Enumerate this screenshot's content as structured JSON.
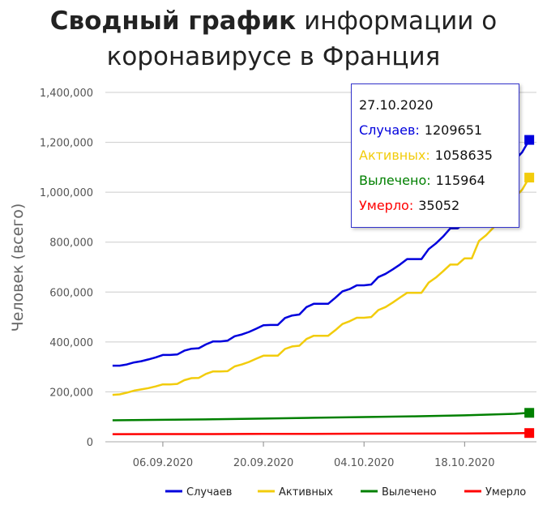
{
  "title": {
    "bold": "Сводный график",
    "rest": " информации о",
    "line2": "коронавирусе в Франция"
  },
  "tooltip": {
    "date": "27.10.2020",
    "rows": [
      {
        "label": "Случаев:",
        "value": "1209651",
        "color": "#0000dd"
      },
      {
        "label": "Активных:",
        "value": "1058635",
        "color": "#f2cc0c"
      },
      {
        "label": "Вылечено:",
        "value": "115964",
        "color": "#008000"
      },
      {
        "label": "Умерло:",
        "value": "35052",
        "color": "#ff0000"
      }
    ]
  },
  "chart_data": {
    "type": "line",
    "ylabel": "Человек (всего)",
    "ylim": [
      0,
      1400000
    ],
    "yticks": [
      {
        "value": 0,
        "label": "0"
      },
      {
        "value": 200000,
        "label": "200,000"
      },
      {
        "value": 400000,
        "label": "400,000"
      },
      {
        "value": 600000,
        "label": "600,000"
      },
      {
        "value": 800000,
        "label": "800,000"
      },
      {
        "value": 1000000,
        "label": "1,000,000"
      },
      {
        "value": 1200000,
        "label": "1,200,000"
      },
      {
        "value": 1400000,
        "label": "1,400,000"
      }
    ],
    "x_start": "2020-08-29",
    "x_end": "2020-10-28",
    "xticks": [
      {
        "date": "2020-09-06",
        "label": "06.09.2020"
      },
      {
        "date": "2020-09-20",
        "label": "20.09.2020"
      },
      {
        "date": "2020-10-04",
        "label": "04.10.2020"
      },
      {
        "date": "2020-10-18",
        "label": "18.10.2020"
      }
    ],
    "grid": true,
    "legend_position": "bottom-right",
    "series": [
      {
        "name": "Случаев",
        "color": "#0000dd",
        "points": [
          [
            "2020-08-30",
            305000
          ],
          [
            "2020-08-31",
            305000
          ],
          [
            "2020-09-01",
            310000
          ],
          [
            "2020-09-02",
            318000
          ],
          [
            "2020-09-03",
            323000
          ],
          [
            "2020-09-04",
            330000
          ],
          [
            "2020-09-05",
            338000
          ],
          [
            "2020-09-06",
            348000
          ],
          [
            "2020-09-07",
            348000
          ],
          [
            "2020-09-08",
            350000
          ],
          [
            "2020-09-09",
            365000
          ],
          [
            "2020-09-10",
            373000
          ],
          [
            "2020-09-11",
            375000
          ],
          [
            "2020-09-12",
            390000
          ],
          [
            "2020-09-13",
            402000
          ],
          [
            "2020-09-14",
            402000
          ],
          [
            "2020-09-15",
            405000
          ],
          [
            "2020-09-16",
            423000
          ],
          [
            "2020-09-17",
            430000
          ],
          [
            "2020-09-18",
            440000
          ],
          [
            "2020-09-19",
            453000
          ],
          [
            "2020-09-20",
            467000
          ],
          [
            "2020-09-21",
            468000
          ],
          [
            "2020-09-22",
            468000
          ],
          [
            "2020-09-23",
            496000
          ],
          [
            "2020-09-24",
            506000
          ],
          [
            "2020-09-25",
            510000
          ],
          [
            "2020-09-26",
            540000
          ],
          [
            "2020-09-27",
            553000
          ],
          [
            "2020-09-28",
            553000
          ],
          [
            "2020-09-29",
            553000
          ],
          [
            "2020-09-30",
            577000
          ],
          [
            "2020-10-01",
            603000
          ],
          [
            "2020-10-02",
            612000
          ],
          [
            "2020-10-03",
            627000
          ],
          [
            "2020-10-04",
            627000
          ],
          [
            "2020-10-05",
            630000
          ],
          [
            "2020-10-06",
            660000
          ],
          [
            "2020-10-07",
            673000
          ],
          [
            "2020-10-08",
            691000
          ],
          [
            "2020-10-09",
            710000
          ],
          [
            "2020-10-10",
            732000
          ],
          [
            "2020-10-11",
            732000
          ],
          [
            "2020-10-12",
            732000
          ],
          [
            "2020-10-13",
            772000
          ],
          [
            "2020-10-14",
            795000
          ],
          [
            "2020-10-15",
            822000
          ],
          [
            "2020-10-16",
            855000
          ],
          [
            "2020-10-17",
            855000
          ],
          [
            "2020-10-18",
            875000
          ],
          [
            "2020-10-19",
            900000
          ],
          [
            "2020-10-20",
            920000
          ],
          [
            "2020-10-21",
            970000
          ],
          [
            "2020-10-22",
            1010000
          ],
          [
            "2020-10-23",
            1050000
          ],
          [
            "2020-10-24",
            1100000
          ],
          [
            "2020-10-25",
            1130000
          ],
          [
            "2020-10-26",
            1160000
          ],
          [
            "2020-10-27",
            1209651
          ]
        ]
      },
      {
        "name": "Активных",
        "color": "#f2cc0c",
        "points": [
          [
            "2020-08-30",
            188000
          ],
          [
            "2020-08-31",
            190000
          ],
          [
            "2020-09-01",
            197000
          ],
          [
            "2020-09-02",
            205000
          ],
          [
            "2020-09-03",
            210000
          ],
          [
            "2020-09-04",
            215000
          ],
          [
            "2020-09-05",
            222000
          ],
          [
            "2020-09-06",
            230000
          ],
          [
            "2020-09-07",
            230000
          ],
          [
            "2020-09-08",
            232000
          ],
          [
            "2020-09-09",
            247000
          ],
          [
            "2020-09-10",
            255000
          ],
          [
            "2020-09-11",
            256000
          ],
          [
            "2020-09-12",
            272000
          ],
          [
            "2020-09-13",
            282000
          ],
          [
            "2020-09-14",
            282000
          ],
          [
            "2020-09-15",
            283000
          ],
          [
            "2020-09-16",
            302000
          ],
          [
            "2020-09-17",
            310000
          ],
          [
            "2020-09-18",
            320000
          ],
          [
            "2020-09-19",
            333000
          ],
          [
            "2020-09-20",
            345000
          ],
          [
            "2020-09-21",
            345000
          ],
          [
            "2020-09-22",
            345000
          ],
          [
            "2020-09-23",
            372000
          ],
          [
            "2020-09-24",
            382000
          ],
          [
            "2020-09-25",
            385000
          ],
          [
            "2020-09-26",
            412000
          ],
          [
            "2020-09-27",
            425000
          ],
          [
            "2020-09-28",
            425000
          ],
          [
            "2020-09-29",
            425000
          ],
          [
            "2020-09-30",
            447000
          ],
          [
            "2020-10-01",
            472000
          ],
          [
            "2020-10-02",
            483000
          ],
          [
            "2020-10-03",
            497000
          ],
          [
            "2020-10-04",
            497000
          ],
          [
            "2020-10-05",
            500000
          ],
          [
            "2020-10-06",
            528000
          ],
          [
            "2020-10-07",
            540000
          ],
          [
            "2020-10-08",
            558000
          ],
          [
            "2020-10-09",
            578000
          ],
          [
            "2020-10-10",
            597000
          ],
          [
            "2020-10-11",
            597000
          ],
          [
            "2020-10-12",
            597000
          ],
          [
            "2020-10-13",
            638000
          ],
          [
            "2020-10-14",
            658000
          ],
          [
            "2020-10-15",
            683000
          ],
          [
            "2020-10-16",
            710000
          ],
          [
            "2020-10-17",
            710000
          ],
          [
            "2020-10-18",
            735000
          ],
          [
            "2020-10-19",
            735000
          ],
          [
            "2020-10-20",
            805000
          ],
          [
            "2020-10-21",
            828000
          ],
          [
            "2020-10-22",
            858000
          ],
          [
            "2020-10-23",
            900000
          ],
          [
            "2020-10-24",
            935000
          ],
          [
            "2020-10-25",
            980000
          ],
          [
            "2020-10-26",
            1010000
          ],
          [
            "2020-10-27",
            1058635
          ]
        ]
      },
      {
        "name": "Вылечено",
        "color": "#008000",
        "points": [
          [
            "2020-08-30",
            86000
          ],
          [
            "2020-09-06",
            88000
          ],
          [
            "2020-09-13",
            90000
          ],
          [
            "2020-09-20",
            93000
          ],
          [
            "2020-09-27",
            96000
          ],
          [
            "2020-10-04",
            99000
          ],
          [
            "2020-10-11",
            102000
          ],
          [
            "2020-10-18",
            106000
          ],
          [
            "2020-10-25",
            112000
          ],
          [
            "2020-10-27",
            115964
          ]
        ]
      },
      {
        "name": "Умерло",
        "color": "#ff0000",
        "points": [
          [
            "2020-08-30",
            30600
          ],
          [
            "2020-09-06",
            30800
          ],
          [
            "2020-09-13",
            31000
          ],
          [
            "2020-09-20",
            31400
          ],
          [
            "2020-09-27",
            31900
          ],
          [
            "2020-10-04",
            32400
          ],
          [
            "2020-10-11",
            32900
          ],
          [
            "2020-10-18",
            33600
          ],
          [
            "2020-10-25",
            34500
          ],
          [
            "2020-10-27",
            35052
          ]
        ]
      }
    ]
  }
}
